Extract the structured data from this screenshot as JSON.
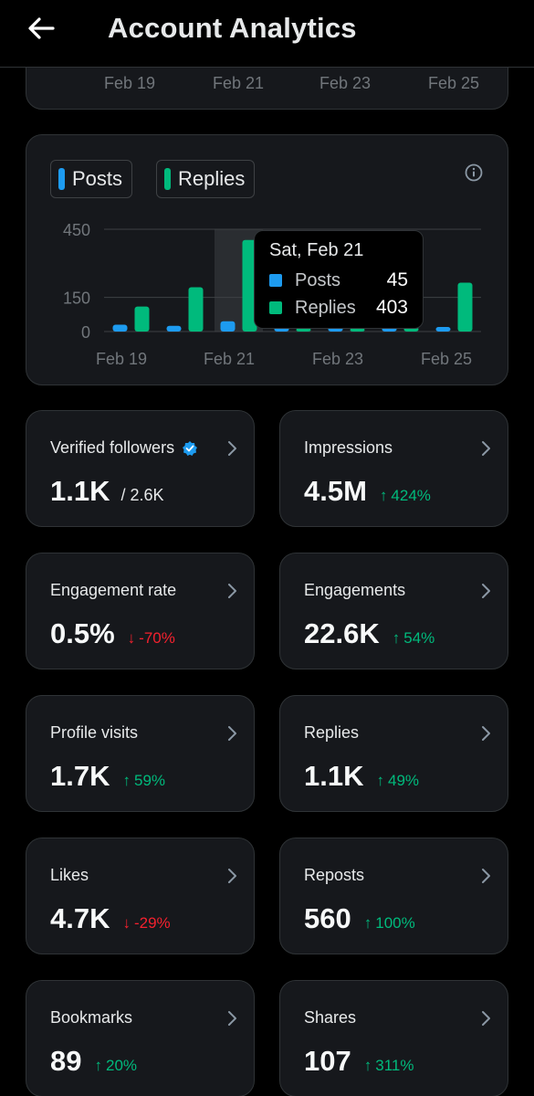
{
  "header": {
    "title": "Account Analytics"
  },
  "prev_chart": {
    "x_labels": [
      "Feb 19",
      "Feb 21",
      "Feb 23",
      "Feb 25"
    ]
  },
  "chart": {
    "legend": [
      {
        "label": "Posts",
        "color": "#1d9bf0"
      },
      {
        "label": "Replies",
        "color": "#00ba7c"
      }
    ],
    "tooltip": {
      "date": "Sat, Feb 21",
      "posts_label": "Posts",
      "posts_value": "45",
      "replies_label": "Replies",
      "replies_value": "403"
    }
  },
  "chart_data": {
    "type": "bar",
    "x_labels": [
      "Feb 19",
      "Feb 21",
      "Feb 23",
      "Feb 25"
    ],
    "categories": [
      "Feb 19",
      "Feb 20",
      "Feb 21",
      "Feb 22",
      "Feb 23",
      "Feb 24",
      "Feb 25"
    ],
    "series": [
      {
        "name": "Posts",
        "color": "#1d9bf0",
        "values": [
          30,
          25,
          45,
          20,
          20,
          20,
          20
        ]
      },
      {
        "name": "Replies",
        "color": "#00ba7c",
        "values": [
          110,
          195,
          403,
          15,
          15,
          20,
          215
        ]
      }
    ],
    "y_ticks": [
      "450",
      "150",
      "0"
    ],
    "ylim": [
      0,
      450
    ],
    "highlighted_category": "Feb 21",
    "grid": true
  },
  "metrics": [
    {
      "label": "Verified followers",
      "value": "1.1K",
      "sub": "/ 2.6K",
      "delta": "",
      "dir": "",
      "verified": true
    },
    {
      "label": "Impressions",
      "value": "4.5M",
      "sub": "",
      "delta": "424%",
      "dir": "up"
    },
    {
      "label": "Engagement rate",
      "value": "0.5%",
      "sub": "",
      "delta": "-70%",
      "dir": "down"
    },
    {
      "label": "Engagements",
      "value": "22.6K",
      "sub": "",
      "delta": "54%",
      "dir": "up"
    },
    {
      "label": "Profile visits",
      "value": "1.7K",
      "sub": "",
      "delta": "59%",
      "dir": "up"
    },
    {
      "label": "Replies",
      "value": "1.1K",
      "sub": "",
      "delta": "49%",
      "dir": "up"
    },
    {
      "label": "Likes",
      "value": "4.7K",
      "sub": "",
      "delta": "-29%",
      "dir": "down"
    },
    {
      "label": "Reposts",
      "value": "560",
      "sub": "",
      "delta": "100%",
      "dir": "up"
    },
    {
      "label": "Bookmarks",
      "value": "89",
      "sub": "",
      "delta": "20%",
      "dir": "up"
    },
    {
      "label": "Shares",
      "value": "107",
      "sub": "",
      "delta": "311%",
      "dir": "up"
    }
  ]
}
